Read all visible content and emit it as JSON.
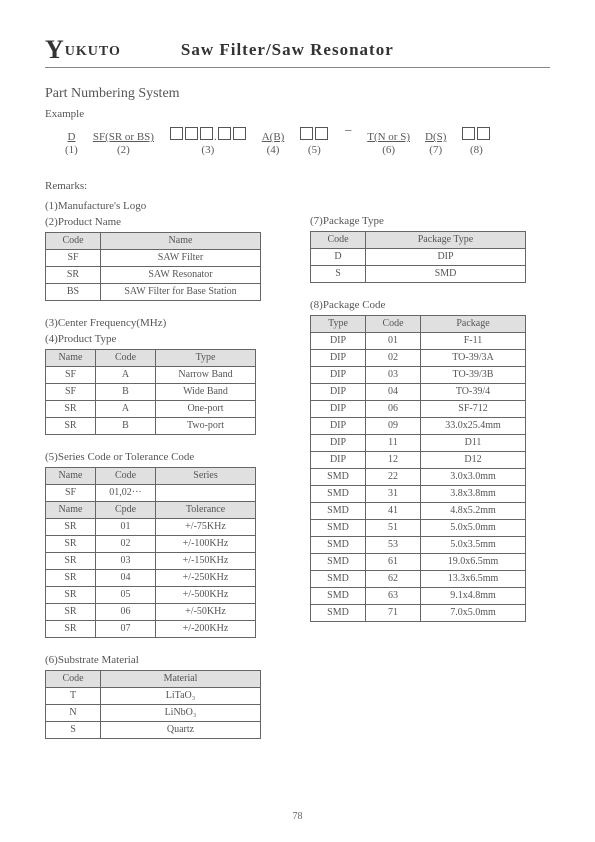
{
  "header": {
    "logo_prefix": "Y",
    "logo_rest": "UKUTO",
    "title": "Saw Filter/Saw Resonator"
  },
  "part_numbering": {
    "title": "Part Numbering System",
    "example_label": "Example",
    "fields": [
      {
        "text": "D",
        "ref": "(1)"
      },
      {
        "text": "SF(SR or BS)",
        "ref": "(2)"
      },
      {
        "text": "□□□.□□",
        "ref": "(3)"
      },
      {
        "text": "A(B)",
        "ref": "(4)"
      },
      {
        "text": "□□",
        "ref": "(5)"
      },
      {
        "text": "−",
        "ref": ""
      },
      {
        "text": "T(N or S)",
        "ref": "(6)"
      },
      {
        "text": "D(S)",
        "ref": "(7)"
      },
      {
        "text": "□□",
        "ref": "(8)"
      }
    ]
  },
  "remarks_label": "Remarks:",
  "remarks": {
    "r1": "(1)Manufacture's Logo",
    "r2_title": "(2)Product Name",
    "r2_headers": [
      "Code",
      "Name"
    ],
    "r2_rows": [
      [
        "SF",
        "SAW Filter"
      ],
      [
        "SR",
        "SAW Resonator"
      ],
      [
        "BS",
        "SAW Filter for Base Station"
      ]
    ],
    "r3_title": "(3)Center Frequency(MHz)",
    "r4_title": "(4)Product Type",
    "r4_headers": [
      "Name",
      "Code",
      "Type"
    ],
    "r4_rows": [
      [
        "SF",
        "A",
        "Narrow Band"
      ],
      [
        "SF",
        "B",
        "Wide Band"
      ],
      [
        "SR",
        "A",
        "One-port"
      ],
      [
        "SR",
        "B",
        "Two-port"
      ]
    ],
    "r5_title": "(5)Series Code or Tolerance Code",
    "r5a_headers": [
      "Name",
      "Code",
      "Series"
    ],
    "r5a_rows": [
      [
        "SF",
        "01,02···",
        ""
      ]
    ],
    "r5b_headers": [
      "Name",
      "Cpde",
      "Tolerance"
    ],
    "r5b_rows": [
      [
        "SR",
        "01",
        "+/-75KHz"
      ],
      [
        "SR",
        "02",
        "+/-100KHz"
      ],
      [
        "SR",
        "03",
        "+/-150KHz"
      ],
      [
        "SR",
        "04",
        "+/-250KHz"
      ],
      [
        "SR",
        "05",
        "+/-500KHz"
      ],
      [
        "SR",
        "06",
        "+/-50KHz"
      ],
      [
        "SR",
        "07",
        "+/-200KHz"
      ]
    ],
    "r6_title": "(6)Substrate Material",
    "r6_headers": [
      "Code",
      "Material"
    ],
    "r6_rows": [
      [
        "T",
        "LiTaO₃"
      ],
      [
        "N",
        "LiNbO₃"
      ],
      [
        "S",
        "Quartz"
      ]
    ],
    "r7_title": "(7)Package Type",
    "r7_headers": [
      "Code",
      "Package Type"
    ],
    "r7_rows": [
      [
        "D",
        "DIP"
      ],
      [
        "S",
        "SMD"
      ]
    ],
    "r8_title": "(8)Package Code",
    "r8_headers": [
      "Type",
      "Code",
      "Package"
    ],
    "r8_rows": [
      [
        "DIP",
        "01",
        "F-11"
      ],
      [
        "DIP",
        "02",
        "TO-39/3A"
      ],
      [
        "DIP",
        "03",
        "TO-39/3B"
      ],
      [
        "DIP",
        "04",
        "TO-39/4"
      ],
      [
        "DIP",
        "06",
        "SF-712"
      ],
      [
        "DIP",
        "09",
        "33.0x25.4mm"
      ],
      [
        "DIP",
        "11",
        "D11"
      ],
      [
        "DIP",
        "12",
        "D12"
      ],
      [
        "SMD",
        "22",
        "3.0x3.0mm"
      ],
      [
        "SMD",
        "31",
        "3.8x3.8mm"
      ],
      [
        "SMD",
        "41",
        "4.8x5.2mm"
      ],
      [
        "SMD",
        "51",
        "5.0x5.0mm"
      ],
      [
        "SMD",
        "53",
        "5.0x3.5mm"
      ],
      [
        "SMD",
        "61",
        "19.0x6.5mm"
      ],
      [
        "SMD",
        "62",
        "13.3x6.5mm"
      ],
      [
        "SMD",
        "63",
        "9.1x4.8mm"
      ],
      [
        "SMD",
        "71",
        "7.0x5.0mm"
      ]
    ]
  },
  "page_number": "78",
  "table_widths": {
    "t2": [
      55,
      160
    ],
    "t4": [
      50,
      60,
      100
    ],
    "t5": [
      50,
      60,
      100
    ],
    "t6": [
      55,
      160
    ],
    "t7": [
      55,
      160
    ],
    "t8": [
      55,
      55,
      105
    ]
  }
}
